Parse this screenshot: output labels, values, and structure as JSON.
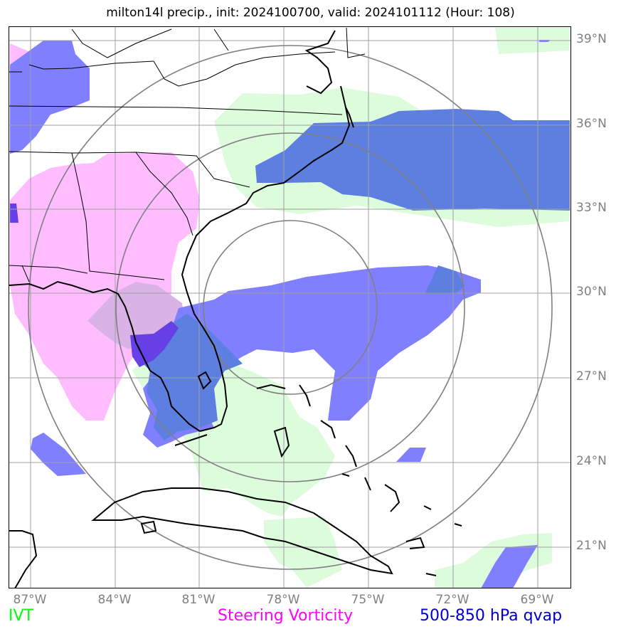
{
  "title": "milton14l precip., init: 2024100700, valid: 2024101112 (Hour: 108)",
  "lat_labels": [
    "39°N",
    "36°N",
    "33°N",
    "30°N",
    "27°N",
    "24°N",
    "21°N"
  ],
  "lon_labels": [
    "87°W",
    "84°W",
    "81°W",
    "78°W",
    "75°W",
    "72°W",
    "69°W"
  ],
  "legend": {
    "ivt": "IVT",
    "vorticity": "Steering Vorticity",
    "qvap": "500-850 hPa qvap"
  },
  "colors": {
    "ivt": "#00ff00",
    "ivt_fill": "#dcfcdc",
    "vorticity": "#ff00ff",
    "vorticity_fill": "#ffbdff",
    "qvap": "#0000cc",
    "qvap_fill": "#7f7fff",
    "qvap_dark": "#5c7fe0",
    "axis_label": "#808080"
  }
}
